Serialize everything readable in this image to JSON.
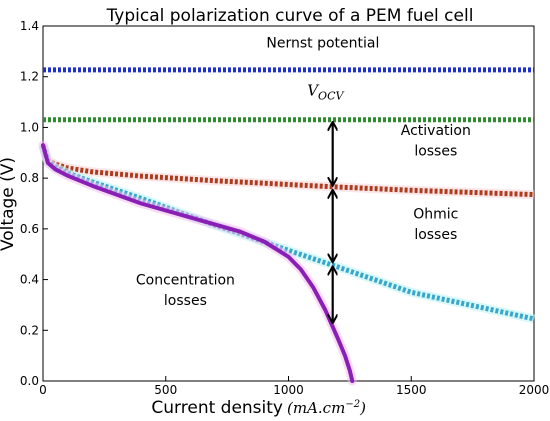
{
  "chart_data": {
    "type": "line",
    "title": "Typical polarization curve of a PEM fuel cell",
    "xlabel": "Current density",
    "xlabel_unit": "(mA.cm−2)",
    "ylabel": "Voltage (V)",
    "xlim": [
      0,
      2000
    ],
    "ylim": [
      0.0,
      1.4
    ],
    "xticks": [
      "0",
      "500",
      "1000",
      "1500",
      "2000"
    ],
    "yticks": [
      "0.0",
      "0.2",
      "0.4",
      "0.6",
      "0.8",
      "1.0",
      "1.2",
      "1.4"
    ],
    "grid": false,
    "series": [
      {
        "key": "nernst",
        "style": "dotted",
        "color": "#1f2fd6",
        "x": [
          0,
          2000
        ],
        "y": [
          1.227,
          1.227
        ]
      },
      {
        "key": "vocv",
        "style": "dotted",
        "color": "#2e8b2e",
        "x": [
          0,
          2000
        ],
        "y": [
          1.03,
          1.03
        ]
      },
      {
        "key": "activation",
        "style": "dotted",
        "color": "#b03a1e",
        "x": [
          0,
          20,
          50,
          100,
          200,
          400,
          700,
          1000,
          1200,
          1500,
          2000
        ],
        "y": [
          0.93,
          0.87,
          0.855,
          0.84,
          0.825,
          0.808,
          0.79,
          0.775,
          0.765,
          0.752,
          0.735
        ]
      },
      {
        "key": "ohmic",
        "style": "dotted",
        "color": "#3aa6c9",
        "x": [
          0,
          20,
          50,
          100,
          200,
          400,
          700,
          1000,
          1200,
          1500,
          2000
        ],
        "y": [
          0.93,
          0.865,
          0.842,
          0.82,
          0.785,
          0.72,
          0.615,
          0.515,
          0.45,
          0.35,
          0.245
        ]
      },
      {
        "key": "actual",
        "style": "solid",
        "color": "#8a1fb5",
        "x": [
          0,
          20,
          50,
          100,
          200,
          400,
          600,
          800,
          900,
          1000,
          1050,
          1100,
          1150,
          1200,
          1230,
          1250,
          1260
        ],
        "y": [
          0.93,
          0.86,
          0.835,
          0.81,
          0.77,
          0.7,
          0.645,
          0.59,
          0.55,
          0.49,
          0.44,
          0.37,
          0.28,
          0.17,
          0.1,
          0.04,
          0.0
        ]
      }
    ],
    "annotations": [
      {
        "key": "nernst_label",
        "text": "Nernst potential",
        "x": 1140,
        "y": 1.315
      },
      {
        "key": "vocv_label",
        "text": "VOCV",
        "x": 1150,
        "y": 1.125
      },
      {
        "key": "activation_label1",
        "text": "Activation",
        "x": 1600,
        "y": 0.97
      },
      {
        "key": "activation_label2",
        "text": "losses",
        "x": 1600,
        "y": 0.89
      },
      {
        "key": "ohmic_label1",
        "text": "Ohmic",
        "x": 1600,
        "y": 0.64
      },
      {
        "key": "ohmic_label2",
        "text": "losses",
        "x": 1600,
        "y": 0.56
      },
      {
        "key": "concentration_label1",
        "text": "Concentration",
        "x": 580,
        "y": 0.38
      },
      {
        "key": "concentration_label2",
        "text": "losses",
        "x": 580,
        "y": 0.3
      }
    ],
    "arrows": [
      {
        "key": "arrow_activation",
        "x": 1180,
        "y1": 1.03,
        "y2": 0.762
      },
      {
        "key": "arrow_ohmic",
        "x": 1180,
        "y1": 0.762,
        "y2": 0.46
      },
      {
        "key": "arrow_concentration",
        "x": 1180,
        "y1": 0.46,
        "y2": 0.22
      }
    ]
  }
}
